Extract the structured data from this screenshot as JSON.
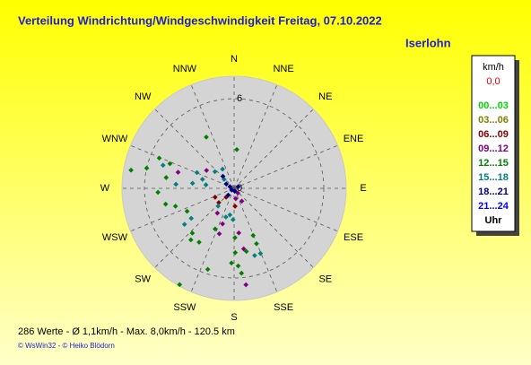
{
  "chart_data": {
    "type": "polar-scatter",
    "title": "Verteilung Windrichtung/Windgeschwindigkeit  Freitag, 07.10.2022",
    "location": "Iserlohn",
    "directions": [
      "N",
      "NNE",
      "NE",
      "ENE",
      "E",
      "ESE",
      "SE",
      "SSE",
      "S",
      "SSW",
      "SW",
      "WSW",
      "W",
      "WNW",
      "NW",
      "NNW"
    ],
    "rlim": [
      0,
      7.5
    ],
    "rticks": [
      0,
      6
    ],
    "legend_title": "km/h",
    "calm": "0,0",
    "legend_footer": "Uhr",
    "series": [
      {
        "name": "00...03",
        "color": "#00d800",
        "dir": [],
        "speed": []
      },
      {
        "name": "03...06",
        "color": "#808000",
        "dir": [],
        "speed": []
      },
      {
        "name": "06...09",
        "color": "#800000",
        "dir": [
          222,
          245,
          177,
          227
        ],
        "speed": [
          0.8,
          1.4,
          1.2,
          1.4
        ]
      },
      {
        "name": "09...12",
        "color": "#800080",
        "dir": [
          286,
          303,
          214,
          198,
          198,
          174,
          171,
          173,
          171,
          141,
          149
        ],
        "speed": [
          3.9,
          2.2,
          2.0,
          2.5,
          3.2,
          3.0,
          4.1,
          6.5,
          0.7,
          0.4,
          1.0
        ]
      },
      {
        "name": "12...15",
        "color": "#008000",
        "dir": [
          280,
          283,
          292,
          291,
          279,
          267,
          257,
          253,
          244,
          223,
          220,
          213,
          198,
          209.5,
          205,
          179,
          158,
          158,
          169,
          179,
          182,
          177,
          175,
          331.5,
          4
        ],
        "speed": [
          7.0,
          6.0,
          5.4,
          4.6,
          4.6,
          5.1,
          4.7,
          4.1,
          3.5,
          4.1,
          4.5,
          4.3,
          5.7,
          7.4,
          3.0,
          3.3,
          3.4,
          4.0,
          4.3,
          4.3,
          5.0,
          5.2,
          5.7,
          3.9,
          2.6
        ]
      },
      {
        "name": "15...18",
        "color": "#008080",
        "dir": [
          288,
          277,
          274,
          286,
          277,
          234,
          235,
          222,
          189,
          182,
          196,
          163,
          158,
          312,
          293,
          311,
          329
        ],
        "speed": [
          5.0,
          2.8,
          3.9,
          2.2,
          1.9,
          4.1,
          3.5,
          1.6,
          1.8,
          2.1,
          2.0,
          4.7,
          4.7,
          0.9,
          2.7,
          1.7,
          1.5
        ]
      },
      {
        "name": "18...21",
        "color": "#000080",
        "dir": [
          292,
          236,
          166,
          299,
          68,
          317,
          221
        ],
        "speed": [
          0.3,
          0.2,
          0.2,
          0.6,
          0.3,
          1.1,
          0.6
        ]
      },
      {
        "name": "21...24",
        "color": "#0000ff",
        "dir": [],
        "speed": []
      }
    ],
    "footer": "286 Werte   -   Ø 1,1km/h  -  Max. 8,0km/h   -   120.5 km",
    "credit": "© WsWin32  -  © Heiko Blödorn"
  }
}
